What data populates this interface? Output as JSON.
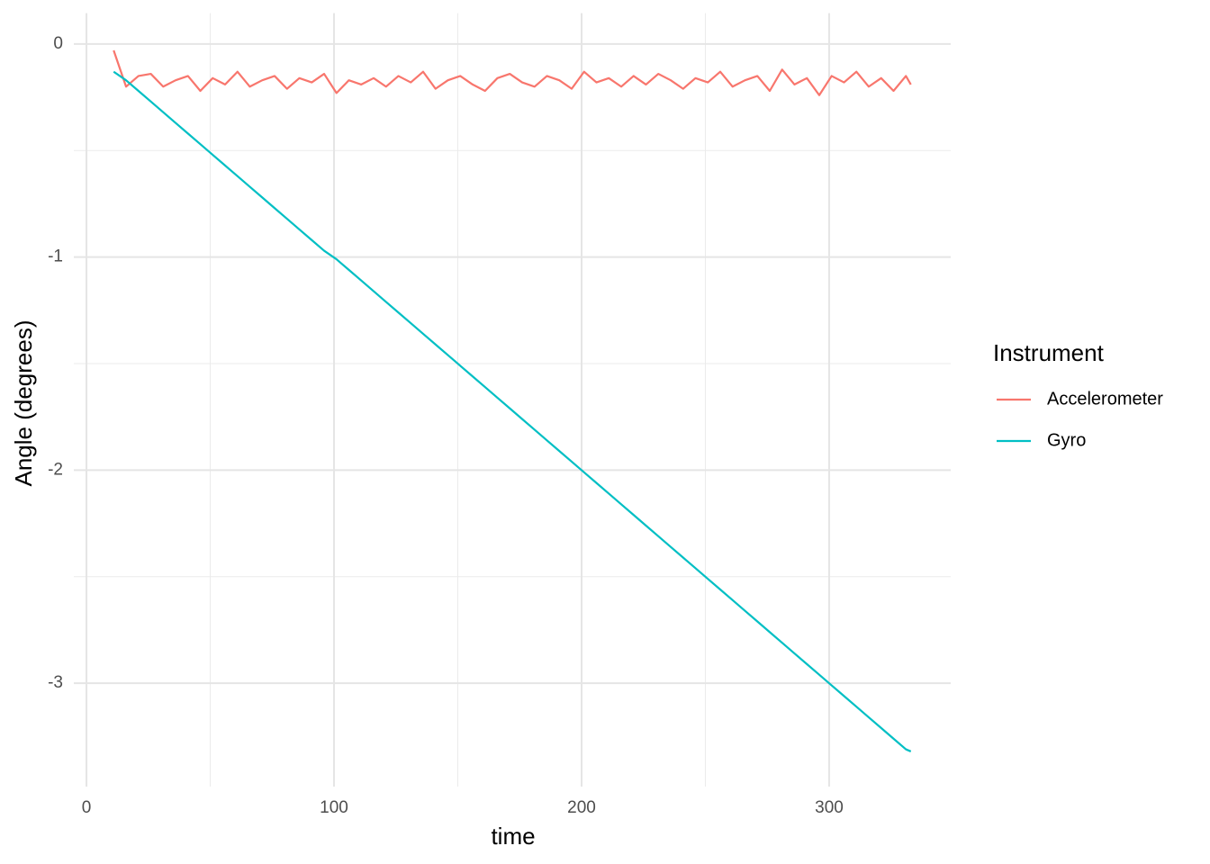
{
  "chart_data": {
    "type": "line",
    "x_label": "time",
    "y_label": "Angle (degrees)",
    "legend_title": "Instrument",
    "legend": "right",
    "grid": true,
    "x": [
      11,
      16,
      21,
      26,
      31,
      36,
      41,
      46,
      51,
      56,
      61,
      66,
      71,
      76,
      81,
      86,
      91,
      96,
      101,
      106,
      111,
      116,
      121,
      126,
      131,
      136,
      141,
      146,
      151,
      156,
      161,
      166,
      171,
      176,
      181,
      186,
      191,
      196,
      201,
      206,
      211,
      216,
      221,
      226,
      231,
      236,
      241,
      246,
      251,
      256,
      261,
      266,
      271,
      276,
      281,
      286,
      291,
      296,
      301,
      306,
      311,
      316,
      321,
      326,
      331,
      333
    ],
    "series": [
      {
        "name": "Accelerometer",
        "color": "#F8766D",
        "values": [
          -0.03,
          -0.2,
          -0.15,
          -0.14,
          -0.2,
          -0.17,
          -0.15,
          -0.22,
          -0.16,
          -0.19,
          -0.13,
          -0.2,
          -0.17,
          -0.15,
          -0.21,
          -0.16,
          -0.18,
          -0.14,
          -0.23,
          -0.17,
          -0.19,
          -0.16,
          -0.2,
          -0.15,
          -0.18,
          -0.13,
          -0.21,
          -0.17,
          -0.15,
          -0.19,
          -0.22,
          -0.16,
          -0.14,
          -0.18,
          -0.2,
          -0.15,
          -0.17,
          -0.21,
          -0.13,
          -0.18,
          -0.16,
          -0.2,
          -0.15,
          -0.19,
          -0.14,
          -0.17,
          -0.21,
          -0.16,
          -0.18,
          -0.13,
          -0.2,
          -0.17,
          -0.15,
          -0.22,
          -0.12,
          -0.19,
          -0.16,
          -0.24,
          -0.15,
          -0.18,
          -0.13,
          -0.2,
          -0.16,
          -0.22,
          -0.15,
          -0.19
        ]
      },
      {
        "name": "Gyro",
        "color": "#00BFC4",
        "values": [
          -0.13,
          -0.17,
          -0.22,
          -0.27,
          -0.32,
          -0.37,
          -0.42,
          -0.47,
          -0.52,
          -0.57,
          -0.62,
          -0.67,
          -0.72,
          -0.77,
          -0.82,
          -0.87,
          -0.92,
          -0.97,
          -1.01,
          -1.06,
          -1.11,
          -1.16,
          -1.21,
          -1.26,
          -1.31,
          -1.36,
          -1.41,
          -1.46,
          -1.51,
          -1.56,
          -1.61,
          -1.66,
          -1.71,
          -1.76,
          -1.81,
          -1.86,
          -1.91,
          -1.96,
          -2.01,
          -2.06,
          -2.11,
          -2.16,
          -2.21,
          -2.26,
          -2.31,
          -2.36,
          -2.41,
          -2.46,
          -2.51,
          -2.56,
          -2.61,
          -2.66,
          -2.71,
          -2.76,
          -2.81,
          -2.86,
          -2.91,
          -2.96,
          -3.01,
          -3.06,
          -3.11,
          -3.16,
          -3.21,
          -3.26,
          -3.31,
          -3.32
        ]
      }
    ],
    "xlim": [
      -5.1,
      349.1
    ],
    "ylim": [
      -3.485,
      0.145
    ],
    "xticks": [
      0,
      100,
      200,
      300
    ],
    "yticks": [
      -3,
      -2,
      -1,
      0
    ]
  }
}
